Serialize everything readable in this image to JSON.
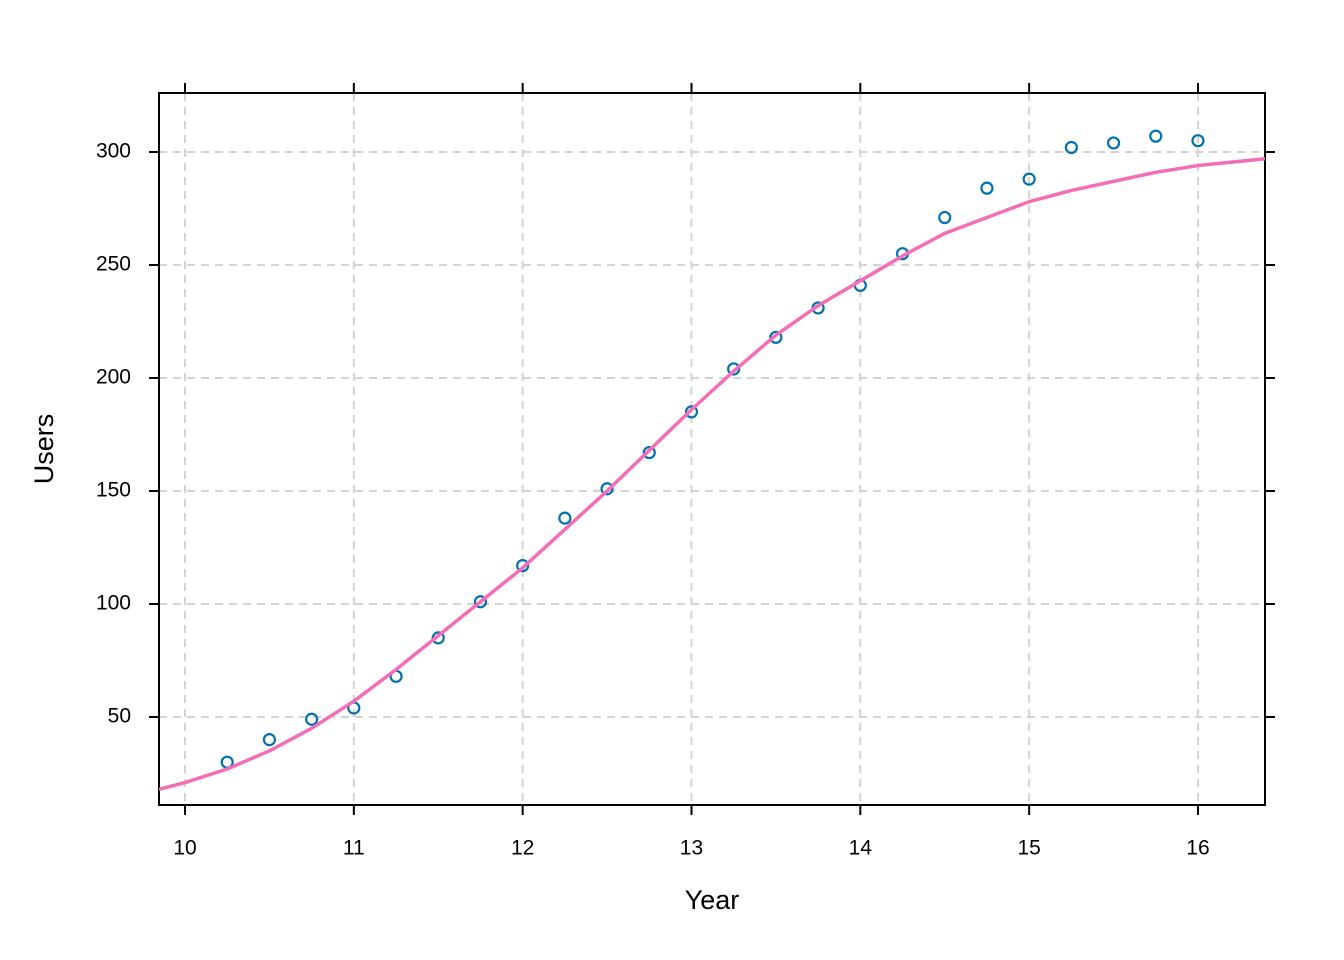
{
  "chart_data": {
    "type": "scatter",
    "x_label": "Year",
    "y_label": "Users",
    "xlim": [
      9.846,
      16.397
    ],
    "ylim": [
      11.06,
      326.1
    ],
    "xticks": [
      10,
      11,
      12,
      13,
      14,
      15,
      16
    ],
    "yticks": [
      50,
      100,
      150,
      200,
      250,
      300
    ],
    "grid": true,
    "series": [
      {
        "type": "scatter",
        "color": "#0072b2",
        "x": [
          10.25,
          10.5,
          10.75,
          11,
          11.25,
          11.5,
          11.75,
          12,
          12.25,
          12.5,
          12.75,
          13,
          13.25,
          13.5,
          13.75,
          14,
          14.25,
          14.5,
          14.75,
          15,
          15.25,
          15.5,
          15.75,
          16
        ],
        "values": [
          30,
          40,
          49,
          54,
          68,
          85,
          101,
          117,
          138,
          151,
          167,
          185,
          204,
          218,
          231,
          241,
          255,
          271,
          284,
          288,
          302,
          304,
          307,
          305
        ]
      },
      {
        "type": "line",
        "color": "#f36db7",
        "x": [
          9.846,
          10,
          10.25,
          10.5,
          10.75,
          11,
          11.25,
          11.5,
          11.75,
          12,
          12.25,
          12.5,
          12.75,
          13,
          13.25,
          13.5,
          13.75,
          14,
          14.25,
          14.5,
          14.75,
          15,
          15.25,
          15.5,
          15.75,
          16,
          16.2,
          16.397
        ],
        "values": [
          18,
          21,
          27,
          35,
          45,
          57,
          71,
          86,
          101,
          116,
          133,
          150,
          168,
          186,
          203,
          219,
          232,
          243,
          254,
          264,
          271,
          278,
          283,
          287,
          291,
          294,
          295.5,
          297
        ]
      }
    ]
  }
}
